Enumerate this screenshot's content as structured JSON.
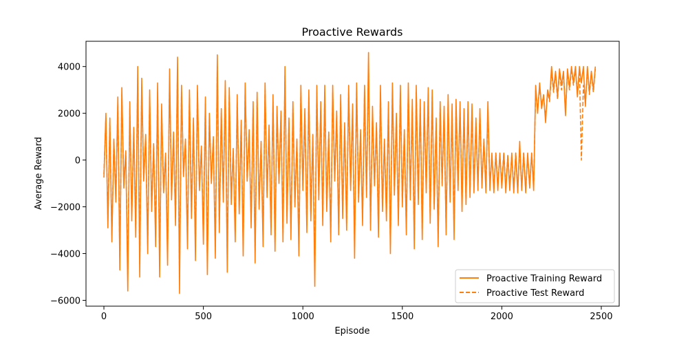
{
  "chart_data": {
    "type": "line",
    "title": "Proactive Rewards",
    "xlabel": "Episode",
    "ylabel": "Average Reward",
    "xlim": [
      -90,
      2590
    ],
    "ylim": [
      -6250,
      5080
    ],
    "xticks": [
      0,
      500,
      1000,
      1500,
      2000,
      2500
    ],
    "xtick_labels": [
      "0",
      "500",
      "1000",
      "1500",
      "2000",
      "2500"
    ],
    "yticks": [
      -6000,
      -4000,
      -2000,
      0,
      2000,
      4000
    ],
    "ytick_labels": [
      "−6000",
      "−4000",
      "−2000",
      "0",
      "2000",
      "4000"
    ],
    "grid": false,
    "legend_position": "lower-right",
    "color": "#ff7f0e",
    "series": [
      {
        "name": "Proactive Training Reward",
        "style": "solid",
        "x_start": 0,
        "x_step": 10,
        "values": [
          -750,
          2000,
          -2900,
          1800,
          -3500,
          900,
          -1800,
          2700,
          -4700,
          3100,
          -1200,
          400,
          -5600,
          2500,
          -2600,
          1400,
          -3300,
          4000,
          -5000,
          3500,
          -900,
          1100,
          -4000,
          3000,
          -2200,
          700,
          -3700,
          3300,
          -5000,
          2400,
          -1400,
          300,
          -4500,
          3900,
          -1700,
          1200,
          -2800,
          4400,
          -5700,
          3200,
          -700,
          900,
          -3800,
          3000,
          -2500,
          1800,
          -4300,
          3200,
          -1300,
          600,
          -3600,
          2700,
          -4900,
          2000,
          -1000,
          1000,
          -4200,
          4500,
          -3100,
          2200,
          -1800,
          3400,
          -4800,
          3100,
          -1900,
          500,
          -3500,
          2800,
          -2300,
          1700,
          -4100,
          3300,
          -900,
          1300,
          -2900,
          2500,
          -4400,
          2900,
          -2100,
          800,
          -3700,
          3300,
          -1600,
          1500,
          -3200,
          2800,
          -3900,
          2300,
          -1000,
          2100,
          -3500,
          4000,
          -2700,
          1800,
          -3400,
          2500,
          -2000,
          900,
          -4100,
          3200,
          -1300,
          2200,
          -3100,
          3000,
          -2600,
          1100,
          -5400,
          3200,
          -1700,
          2500,
          -2800,
          3200,
          -2200,
          1200,
          -3500,
          3200,
          -900,
          2100,
          -3200,
          2800,
          -2500,
          1600,
          -3000,
          3200,
          -1300,
          2400,
          -4200,
          3300,
          -1800,
          1300,
          -2800,
          3200,
          -1600,
          4600,
          -3000,
          2300,
          -1100,
          1600,
          -3300,
          3200,
          -2200,
          900,
          -2600,
          2500,
          -4000,
          3300,
          -1500,
          2000,
          -2800,
          3200,
          -2000,
          1300,
          -3200,
          3300,
          -1700,
          2600,
          -3800,
          3200,
          -1900,
          2600,
          -3400,
          2500,
          -1400,
          3100,
          -2700,
          3000,
          -2100,
          1800,
          -3700,
          2500,
          -1100,
          2300,
          -3200,
          2800,
          -1800,
          2400,
          -3400,
          2600,
          -1300,
          2500,
          -2200,
          2200,
          -1900,
          2500,
          -1600,
          2400,
          -1400,
          1800,
          -1300,
          2200,
          -1200,
          900,
          -1400,
          2500,
          -1300,
          300,
          -1400,
          300,
          -1300,
          300,
          -1200,
          300,
          -1400,
          200,
          -1300,
          300,
          -1400,
          300,
          -1400,
          800,
          -1300,
          300,
          -1400,
          300,
          -1200,
          300,
          -1300,
          3200,
          2000,
          3300,
          2200,
          2800,
          1600,
          3000,
          2600,
          4000,
          3000,
          3800,
          2700,
          3900,
          3200,
          3800,
          1900,
          3900,
          3100,
          4000,
          3300,
          4000,
          2700,
          4000,
          3300,
          4000,
          2300,
          4000,
          2900,
          3800,
          3000,
          4000
        ]
      },
      {
        "name": "Proactive Test Reward",
        "style": "dashed",
        "x_start": 0,
        "x_step": 10,
        "values": [
          -600,
          1800,
          -2600,
          1600,
          -3200,
          800,
          -1600,
          2400,
          -4200,
          2800,
          -1000,
          300,
          -4900,
          2200,
          -2300,
          1200,
          -3000,
          3500,
          -4500,
          3100,
          -800,
          900,
          -3600,
          2700,
          -2000,
          600,
          -3300,
          2900,
          -4500,
          2100,
          -1200,
          200,
          -4000,
          3400,
          -1500,
          1000,
          -2500,
          3900,
          -5000,
          2900,
          -600,
          800,
          -3400,
          2700,
          -2200,
          1600,
          -3800,
          2900,
          -1100,
          500,
          -3200,
          2400,
          -4300,
          1800,
          -900,
          900,
          -3700,
          4000,
          -2800,
          2000,
          -1600,
          3000,
          -4200,
          2800,
          -1700,
          400,
          -3100,
          2500,
          -2000,
          1500,
          -3600,
          3000,
          -800,
          1100,
          -2600,
          2200,
          -3900,
          2600,
          -1900,
          700,
          -3300,
          3000,
          -1400,
          1300,
          -2900,
          2500,
          -3500,
          2000,
          -900,
          1900,
          -3100,
          3600,
          -2400,
          1600,
          -3000,
          2200,
          -1800,
          800,
          -3600,
          2900,
          -1100,
          2000,
          -2800,
          2700,
          -2300,
          1000,
          -4800,
          2900,
          -1500,
          2200,
          -2500,
          2900,
          -2000,
          1100,
          -3100,
          2900,
          -800,
          1900,
          -2900,
          2500,
          -2200,
          1400,
          -2700,
          2900,
          -1100,
          2100,
          -3700,
          3000,
          -1600,
          1100,
          -2500,
          2900,
          -1400,
          4100,
          -2700,
          2000,
          -1000,
          1400,
          -2900,
          2900,
          -2000,
          800,
          -2300,
          2200,
          -3600,
          3000,
          -1300,
          1800,
          -2500,
          2900,
          -1800,
          1100,
          -2900,
          3000,
          -1500,
          2300,
          -3400,
          2900,
          -1700,
          2300,
          -3000,
          2200,
          -1200,
          2800,
          -2400,
          2700,
          -1900,
          1600,
          -3300,
          2200,
          -1000,
          2000,
          -2900,
          2500,
          -1600,
          2100,
          -3000,
          2300,
          -1100,
          2200,
          -1900,
          2000,
          -1700,
          2200,
          -1400,
          2100,
          -1200,
          1600,
          -1100,
          2000,
          -1000,
          800,
          -1200,
          2200,
          -1100,
          200,
          -1200,
          300,
          -1100,
          200,
          -1000,
          300,
          -1200,
          200,
          -1100,
          200,
          -1200,
          300,
          -1300,
          600,
          -1200,
          300,
          -1300,
          200,
          -1100,
          300,
          -1200,
          3000,
          2200,
          3100,
          2400,
          2700,
          1800,
          2900,
          2500,
          3800,
          2900,
          3700,
          2600,
          3800,
          3000,
          3700,
          2100,
          3800,
          3000,
          3900,
          3200,
          3900,
          2800,
          3900,
          0,
          3200,
          2400,
          3900,
          2800,
          3700,
          2900,
          3900
        ]
      }
    ]
  }
}
